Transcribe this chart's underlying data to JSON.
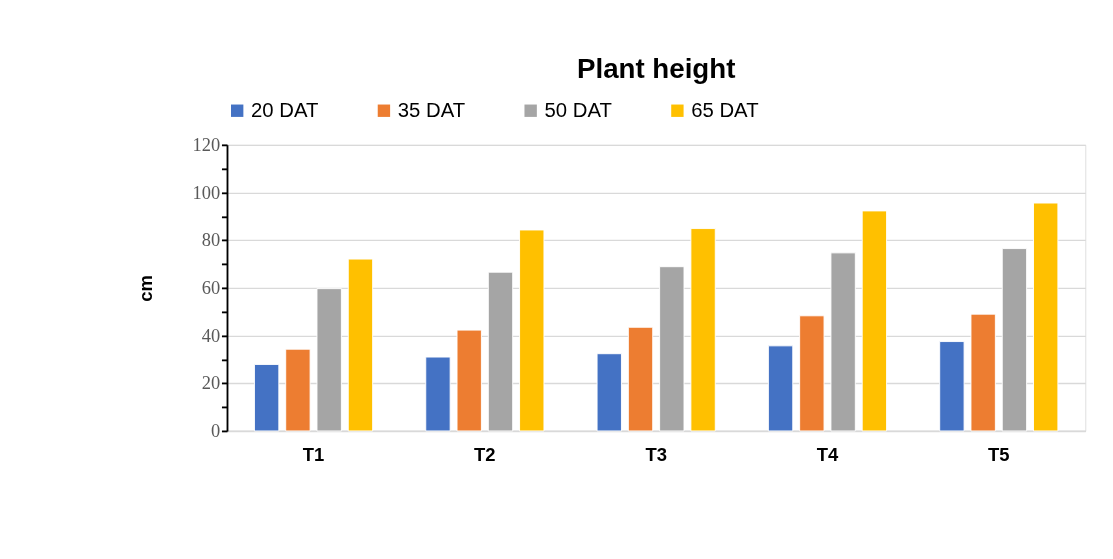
{
  "chart_data": {
    "type": "bar",
    "title": "Plant height",
    "ylabel": "cm",
    "categories": [
      "T1",
      "T2",
      "T3",
      "T4",
      "T5"
    ],
    "series": [
      {
        "name": "20 DAT",
        "color": "#4472c4",
        "values": [
          27.9,
          31.0,
          32.4,
          35.7,
          37.5
        ]
      },
      {
        "name": "35 DAT",
        "color": "#ed7d31",
        "values": [
          34.3,
          42.3,
          43.5,
          48.3,
          49.0
        ]
      },
      {
        "name": "50 DAT",
        "color": "#a5a5a5",
        "values": [
          59.7,
          66.6,
          68.9,
          74.7,
          76.5
        ]
      },
      {
        "name": "65 DAT",
        "color": "#ffc000",
        "values": [
          72.1,
          84.3,
          84.9,
          92.3,
          95.6
        ]
      }
    ],
    "ylim": [
      0,
      120
    ],
    "yticks": [
      0,
      {
        "value": 10,
        "label": null
      },
      20,
      {
        "value": 30,
        "label": null
      },
      40,
      {
        "value": 50,
        "label": null
      },
      60,
      {
        "value": 70,
        "label": null
      },
      80,
      {
        "value": 90,
        "label": null
      },
      100,
      {
        "value": 110,
        "label": null
      },
      120
    ],
    "grid": "y",
    "legend": "top"
  }
}
